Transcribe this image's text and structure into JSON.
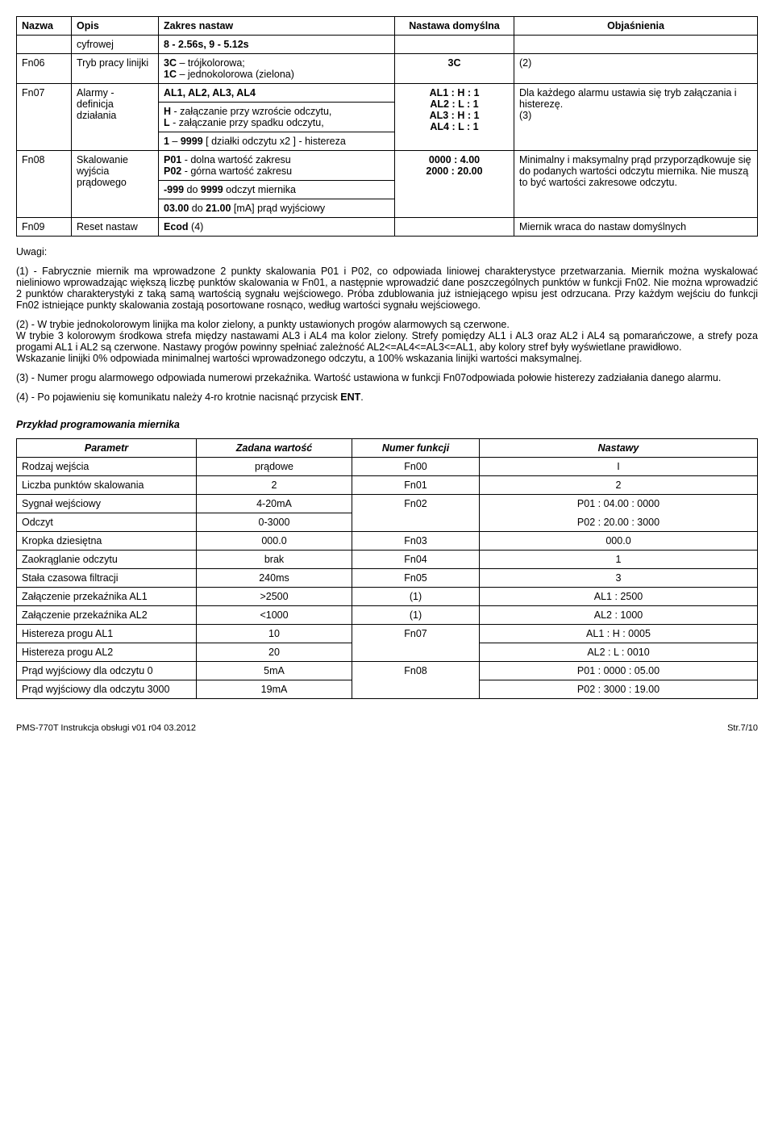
{
  "table1": {
    "headers": [
      "Nazwa",
      "Opis",
      "Zakres nastaw",
      "Nastawa domyślna",
      "Objaśnienia"
    ],
    "rows": {
      "r0": {
        "opis": "cyfrowej",
        "zakres": "8 - 2.56s, 9 - 5.12s"
      },
      "fn06": {
        "nazwa": "Fn06",
        "opis": "Tryb pracy linijki",
        "zakres_l1": "3C – trójkolorowa;",
        "zakres_l2": "1C – jednokolorowa (zielona)",
        "nastawa": "3C",
        "obj": "(2)"
      },
      "fn07": {
        "nazwa": "Fn07",
        "opis": "Alarmy - definicja działania",
        "zakres_l1": "AL1, AL2, AL3, AL4",
        "zakres_l2a": "H - załączanie przy wzroście odczytu,",
        "zakres_l2b": "L - załączanie przy spadku odczytu,",
        "zakres_l3": "1 – 9999 [ działki odczytu x2 ] - histereza",
        "nastawa_l1": "AL1 : H : 1",
        "nastawa_l2": "AL2 : L : 1",
        "nastawa_l3": "AL3 : H : 1",
        "nastawa_l4": "AL4 : L : 1",
        "obj_l1": "Dla każdego alarmu ustawia się tryb załączania i histerezę.",
        "obj_l2": "(3)"
      },
      "fn08": {
        "nazwa": "Fn08",
        "opis": "Skalowanie wyjścia prądowego",
        "zakres_l1a": "P01 - dolna wartość zakresu",
        "zakres_l1b": "P02 - górna wartość zakresu",
        "zakres_l2": "-999 do 9999 odczyt miernika",
        "zakres_l3": "03.00 do 21.00  [mA] prąd wyjściowy",
        "nastawa_l1": "0000 :  4.00",
        "nastawa_l2": "2000 : 20.00",
        "obj": "Minimalny i maksymalny prąd przyporządkowuje się do podanych wartości odczytu miernika. Nie muszą to być wartości zakresowe odczytu."
      },
      "fn09": {
        "nazwa": "Fn09",
        "opis": "Reset nastaw",
        "zakres": "Ecod (4)",
        "obj": "Miernik wraca do nastaw domyślnych"
      }
    }
  },
  "notes": {
    "heading": "Uwagi:",
    "n1": "(1) - Fabrycznie miernik ma wprowadzone 2 punkty skalowania P01 i P02, co odpowiada liniowej charakterystyce przetwarzania. Miernik można wyskalować nieliniowo wprowadzając większą liczbę punktów skalowania w Fn01, a następnie wprowadzić dane poszczególnych punktów w funkcji Fn02. Nie można wprowadzić 2 punktów charakterystyki z taką samą wartością sygnału wejściowego. Próba zdublowania już istniejącego wpisu jest odrzucana. Przy każdym wejściu do funkcji Fn02 istniejące punkty skalowania zostają posortowane rosnąco, według wartości sygnału wejściowego.",
    "n2a": "(2) - W trybie jednokolorowym linijka ma kolor zielony, a punkty ustawionych progów alarmowych są czerwone.",
    "n2b": "W trybie 3 kolorowym środkowa strefa między nastawami AL3 i AL4 ma kolor zielony. Strefy pomiędzy AL1 i AL3 oraz AL2 i AL4 są pomarańczowe, a strefy poza progami AL1 i AL2 są czerwone.  Nastawy progów powinny spełniać zależność AL2<=AL4<=AL3<=AL1, aby kolory stref były wyświetlane prawidłowo.",
    "n2c": "Wskazanie linijki 0% odpowiada minimalnej wartości wprowadzonego odczytu, a 100% wskazania linijki wartości maksymalnej.",
    "n3": "(3) - Numer progu alarmowego odpowiada numerowi przekaźnika. Wartość ustawiona w funkcji Fn07odpowiada połowie histerezy zadziałania danego alarmu.",
    "n4": "(4) - Po pojawieniu się komunikatu należy 4-ro krotnie nacisnąć przycisk ENT."
  },
  "example": {
    "heading": "Przykład programowania miernika",
    "headers": [
      "Parametr",
      "Zadana wartość",
      "Numer funkcji",
      "Nastawy"
    ],
    "rows": [
      {
        "p": "Rodzaj wejścia",
        "z": "prądowe",
        "n": "Fn00",
        "s": "I"
      },
      {
        "p": "Liczba punktów skalowania",
        "z": "2",
        "n": "Fn01",
        "s": "2"
      },
      {
        "p": "Sygnał wejściowy",
        "z": "4-20mA",
        "n": "Fn02",
        "s": "P01 : 04.00 : 0000"
      },
      {
        "p": "Odczyt",
        "z": "0-3000",
        "n": "",
        "s": "P02 : 20.00 : 3000"
      },
      {
        "p": "Kropka dziesiętna",
        "z": "000.0",
        "n": "Fn03",
        "s": "000.0"
      },
      {
        "p": "Zaokrąglanie odczytu",
        "z": "brak",
        "n": "Fn04",
        "s": "1"
      },
      {
        "p": "Stała czasowa filtracji",
        "z": "240ms",
        "n": "Fn05",
        "s": "3"
      },
      {
        "p": "Załączenie przekaźnika AL1",
        "z": ">2500",
        "n": "(1)",
        "s": "AL1 : 2500"
      },
      {
        "p": "Załączenie przekaźnika AL2",
        "z": "<1000",
        "n": "(1)",
        "s": "AL2 : 1000"
      },
      {
        "p": "Histereza progu AL1",
        "z": "10",
        "n": "Fn07",
        "s": "AL1 : H : 0005"
      },
      {
        "p": "Histereza progu AL2",
        "z": "20",
        "n": "",
        "s": "AL2 : L : 0010"
      },
      {
        "p": "Prąd wyjściowy dla odczytu 0",
        "z": "5mA",
        "n": "Fn08",
        "s": "P01 : 0000 : 05.00"
      },
      {
        "p": "Prąd wyjściowy dla odczytu 3000",
        "z": "19mA",
        "n": "",
        "s": "P02 : 3000 : 19.00"
      }
    ]
  },
  "footer": {
    "left": "PMS-770T Instrukcja obsługi   v01 r04   03.2012",
    "right": "Str.7/10"
  }
}
